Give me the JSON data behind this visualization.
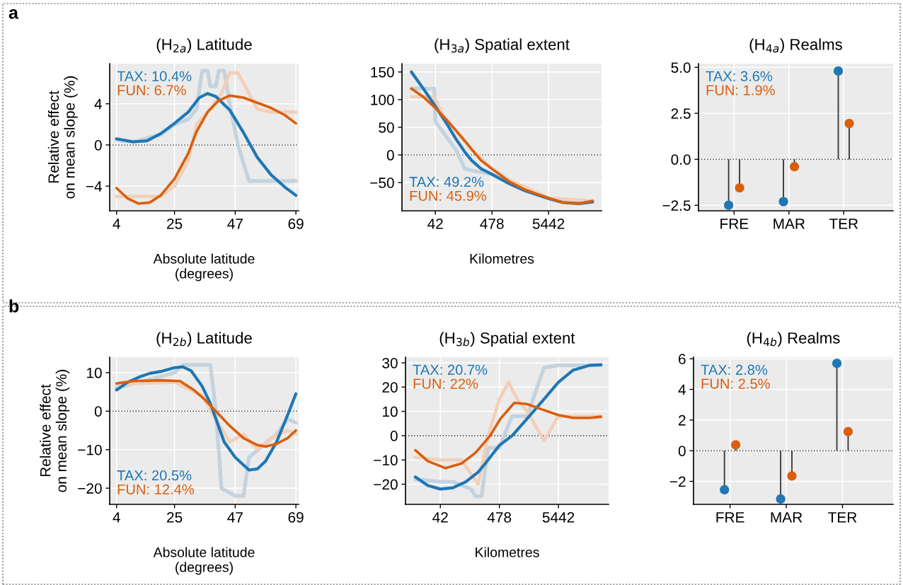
{
  "chart_data": [
    {
      "type": "line",
      "title": "(H$_{2a}$) Latitude",
      "xlabel": "Absolute latitude\n(degrees)",
      "ylabel": "Relative effect\non mean slope (%)",
      "annotations": [
        "a"
      ],
      "xlim": [
        1.5,
        70
      ],
      "xticks": [
        4,
        25,
        47,
        69
      ],
      "ylim": [
        -6.4,
        7.9
      ],
      "yticks": [
        4,
        0,
        {
          "value": -4,
          "label": "−4"
        }
      ],
      "grid": true,
      "legend": "top left",
      "line_style": "solid",
      "ref_lines": [
        {
          "axis": "y",
          "value": 0,
          "color": "#444444",
          "line_style": "dotted"
        }
      ],
      "series": [
        {
          "color": "#c3d3df",
          "x": [
            4,
            10,
            20,
            25,
            30,
            33,
            35,
            37,
            38,
            40,
            41,
            43,
            45,
            48,
            52,
            58,
            69
          ],
          "values": [
            0.5,
            0.3,
            1,
            2,
            2.5,
            3.5,
            7.2,
            7.2,
            5.7,
            5.7,
            7.2,
            7.2,
            4,
            0,
            -3.5,
            -3.5,
            -3.5
          ]
        },
        {
          "color": "#f2d0b8",
          "x": [
            4,
            10,
            20,
            25,
            30,
            33,
            38,
            42,
            45,
            48,
            52,
            55,
            60,
            69
          ],
          "values": [
            -5,
            -5,
            -5,
            -4,
            -1.5,
            2,
            3.5,
            5,
            7,
            7,
            5,
            3.5,
            3.2,
            3.2
          ]
        },
        {
          "name": "TAX: 10.4%",
          "color": "#1f77b4",
          "x": [
            4,
            10,
            15,
            20,
            25,
            30,
            34,
            37,
            40,
            45,
            50,
            55,
            60,
            65,
            69
          ],
          "values": [
            0.6,
            0.3,
            0.4,
            1.1,
            2.1,
            3.2,
            4.6,
            5.0,
            4.7,
            3.4,
            1.2,
            -1.2,
            -2.9,
            -4.1,
            -4.9
          ]
        },
        {
          "name": "FUN: 6.7%",
          "color": "#d95f0e",
          "x": [
            4,
            8,
            12,
            16,
            20,
            25,
            30,
            33,
            37,
            41,
            45,
            50,
            55,
            60,
            65,
            69
          ],
          "values": [
            -4.2,
            -5.2,
            -5.7,
            -5.6,
            -4.9,
            -3.3,
            -0.8,
            1.3,
            3.2,
            4.3,
            4.8,
            4.6,
            4.1,
            3.6,
            2.9,
            2.1
          ]
        }
      ]
    },
    {
      "type": "line",
      "title": "(H$_{3a}$) Spatial extent",
      "xlabel": "Kilometres",
      "log": "x",
      "xlim": [
        10,
        53000
      ],
      "xticks": [
        42,
        478,
        5442
      ],
      "ylim": [
        -101,
        165
      ],
      "yticks": [
        150,
        100,
        50,
        0,
        {
          "value": -50,
          "label": "−50"
        }
      ],
      "grid": true,
      "legend": "bottom left",
      "line_style": "solid",
      "ref_lines": [
        {
          "axis": "y",
          "value": 0,
          "color": "#444444",
          "line_style": "dotted"
        }
      ],
      "series": [
        {
          "color": "#c3d3df",
          "x": [
            15,
            40,
            42,
            60,
            100,
            150,
            250,
            478,
            1000,
            5442,
            36000
          ],
          "values": [
            120,
            120,
            60,
            40,
            10,
            -25,
            -30,
            -35,
            -50,
            -78,
            -85
          ]
        },
        {
          "color": "#f2d0b8",
          "x": [
            15,
            40,
            60,
            100,
            200,
            478,
            1000,
            5442,
            36000
          ],
          "values": [
            105,
            105,
            70,
            45,
            10,
            -25,
            -45,
            -78,
            -83
          ]
        },
        {
          "name": "TAX: 49.2%",
          "color": "#1f77b4",
          "x": [
            15,
            25,
            42,
            70,
            100,
            150,
            200,
            300,
            478,
            1000,
            2000,
            5442,
            10000,
            20000,
            36000
          ],
          "values": [
            150,
            120,
            88,
            55,
            30,
            5,
            -10,
            -25,
            -35,
            -52,
            -65,
            -79,
            -86,
            -88,
            -85
          ]
        },
        {
          "name": "FUN: 45.9%",
          "color": "#d95f0e",
          "x": [
            15,
            25,
            42,
            70,
            100,
            150,
            200,
            300,
            478,
            1000,
            2000,
            5442,
            10000,
            20000,
            36000
          ],
          "values": [
            120,
            105,
            85,
            62,
            45,
            25,
            10,
            -10,
            -25,
            -48,
            -63,
            -78,
            -86,
            -88,
            -83
          ]
        }
      ]
    },
    {
      "type": "lollipop",
      "title": "(H$_{4a}$) Realms",
      "categories": [
        "FRE",
        "MAR",
        "TER"
      ],
      "ylim": [
        -2.8,
        5.2
      ],
      "yticks": [
        {
          "value": 5,
          "label": "5.0"
        },
        2.5,
        {
          "value": 0,
          "label": "0.0"
        },
        {
          "value": -2.5,
          "label": "−2.5"
        }
      ],
      "grid": true,
      "legend": "top left",
      "marker": "circle",
      "ref_lines": [
        {
          "axis": "y",
          "value": 0,
          "color": "#444444",
          "line_style": "dotted"
        }
      ],
      "series": [
        {
          "name": "TAX: 3.6%",
          "color": "#1f77b4",
          "values": [
            -2.5,
            -2.3,
            4.8
          ]
        },
        {
          "name": "FUN: 1.9%",
          "color": "#d95f0e",
          "values": [
            -1.55,
            -0.4,
            1.95
          ]
        }
      ]
    },
    {
      "type": "line",
      "title": "(H$_{2b}$) Latitude",
      "xlabel": "Absolute latitude\n(degrees)",
      "ylabel": "Relative effect\non mean slope (%)",
      "annotations": [
        "b"
      ],
      "xlim": [
        1.5,
        70
      ],
      "xticks": [
        4,
        25,
        47,
        69
      ],
      "ylim": [
        -24.2,
        14
      ],
      "yticks": [
        10,
        0,
        {
          "value": -10,
          "label": "−10"
        },
        {
          "value": -20,
          "label": "−20"
        }
      ],
      "grid": true,
      "legend": "bottom left",
      "line_style": "solid",
      "ref_lines": [
        {
          "axis": "y",
          "value": 0,
          "color": "#444444",
          "line_style": "dotted"
        }
      ],
      "series": [
        {
          "color": "#c3d3df",
          "x": [
            4,
            20,
            25,
            28,
            38,
            40,
            42,
            47,
            50,
            52,
            57,
            62,
            66,
            69
          ],
          "values": [
            6,
            9,
            10,
            12,
            12,
            0,
            -20,
            -22,
            -22,
            -12,
            -9,
            -6,
            -2,
            -3
          ]
        },
        {
          "color": "#f2d0b8",
          "x": [
            4,
            25,
            35,
            40,
            45,
            50,
            55,
            60,
            66,
            69
          ],
          "values": [
            7,
            7.5,
            4,
            -2,
            -8,
            -6,
            -10,
            -7,
            -5,
            -6
          ]
        },
        {
          "name": "TAX: 20.5%",
          "color": "#1f77b4",
          "x": [
            4,
            8,
            12,
            16,
            20,
            25,
            28,
            31,
            35,
            38,
            40,
            43,
            47,
            52,
            55,
            58,
            62,
            66,
            69
          ],
          "values": [
            5.5,
            7.5,
            8.8,
            9.8,
            10.3,
            11.3,
            11.5,
            10.5,
            6.5,
            2,
            -2,
            -8,
            -12,
            -15.3,
            -15,
            -13,
            -8,
            -1,
            4.5
          ]
        },
        {
          "name": "FUN: 12.4%",
          "color": "#d95f0e",
          "x": [
            4,
            10,
            20,
            27,
            32,
            36,
            40,
            45,
            50,
            55,
            58,
            62,
            66,
            69
          ],
          "values": [
            7.2,
            7.8,
            8.0,
            7.8,
            5.5,
            3,
            0,
            -3.8,
            -7,
            -8.8,
            -9.2,
            -8.5,
            -7,
            -5
          ]
        }
      ]
    },
    {
      "type": "line",
      "title": "(H$_{3b}$) Spatial extent",
      "xlabel": "Kilometres",
      "log": "x",
      "xlim": [
        10,
        43000
      ],
      "xticks": [
        42,
        478,
        5442
      ],
      "ylim": [
        -28.3,
        32.3
      ],
      "yticks": [
        30,
        20,
        10,
        0,
        {
          "value": -10,
          "label": "−10"
        },
        {
          "value": -20,
          "label": "−20"
        }
      ],
      "grid": true,
      "legend": "top left",
      "line_style": "solid",
      "ref_lines": [
        {
          "axis": "y",
          "value": 0,
          "color": "#444444",
          "line_style": "dotted"
        }
      ],
      "series": [
        {
          "color": "#c3d3df",
          "x": [
            15,
            42,
            70,
            150,
            180,
            230,
            300,
            478,
            800,
            1500,
            3000,
            5442,
            10000,
            31500
          ],
          "values": [
            -18,
            -19,
            -19,
            -22,
            -25,
            -25,
            -5,
            -5,
            8,
            8,
            28,
            29,
            29,
            29
          ]
        },
        {
          "color": "#f2d0b8",
          "x": [
            15,
            42,
            100,
            200,
            300,
            478,
            700,
            1000,
            1500,
            3000,
            5442,
            10000,
            31500
          ],
          "values": [
            -9,
            -10,
            -10,
            -20,
            0,
            15,
            22,
            15,
            10,
            -2,
            8,
            8,
            8
          ]
        },
        {
          "name": "TAX: 20.7%",
          "color": "#1f77b4",
          "x": [
            15,
            25,
            42,
            70,
            120,
            200,
            300,
            478,
            810,
            1500,
            3000,
            5442,
            10000,
            20000,
            31500
          ],
          "values": [
            -17,
            -20.5,
            -22,
            -21.5,
            -19,
            -15,
            -10,
            -4,
            0,
            7,
            15,
            22,
            27,
            29,
            29.2
          ]
        },
        {
          "name": "FUN: 22%",
          "color": "#d95f0e",
          "x": [
            15,
            25,
            52,
            100,
            180,
            327,
            500,
            883,
            1500,
            3000,
            5442,
            10000,
            20000,
            31500
          ],
          "values": [
            -6,
            -10.5,
            -13.4,
            -11.5,
            -7,
            0,
            7,
            13.5,
            13,
            10.5,
            8.5,
            7.3,
            7.3,
            7.8
          ]
        }
      ]
    },
    {
      "type": "lollipop",
      "title": "(H$_{4b}$) Realms",
      "categories": [
        "FRE",
        "MAR",
        "TER"
      ],
      "ylim": [
        -3.5,
        6.1
      ],
      "yticks": [
        6,
        4,
        2,
        0,
        {
          "value": -2,
          "label": "−2"
        }
      ],
      "grid": true,
      "legend": "top left",
      "marker": "circle",
      "ref_lines": [
        {
          "axis": "y",
          "value": 0,
          "color": "#444444",
          "line_style": "dotted"
        }
      ],
      "series": [
        {
          "name": "TAX: 2.8%",
          "color": "#1f77b4",
          "values": [
            -2.55,
            -3.15,
            5.7
          ]
        },
        {
          "name": "FUN: 2.5%",
          "color": "#d95f0e",
          "values": [
            0.38,
            -1.65,
            1.25
          ]
        }
      ]
    }
  ]
}
